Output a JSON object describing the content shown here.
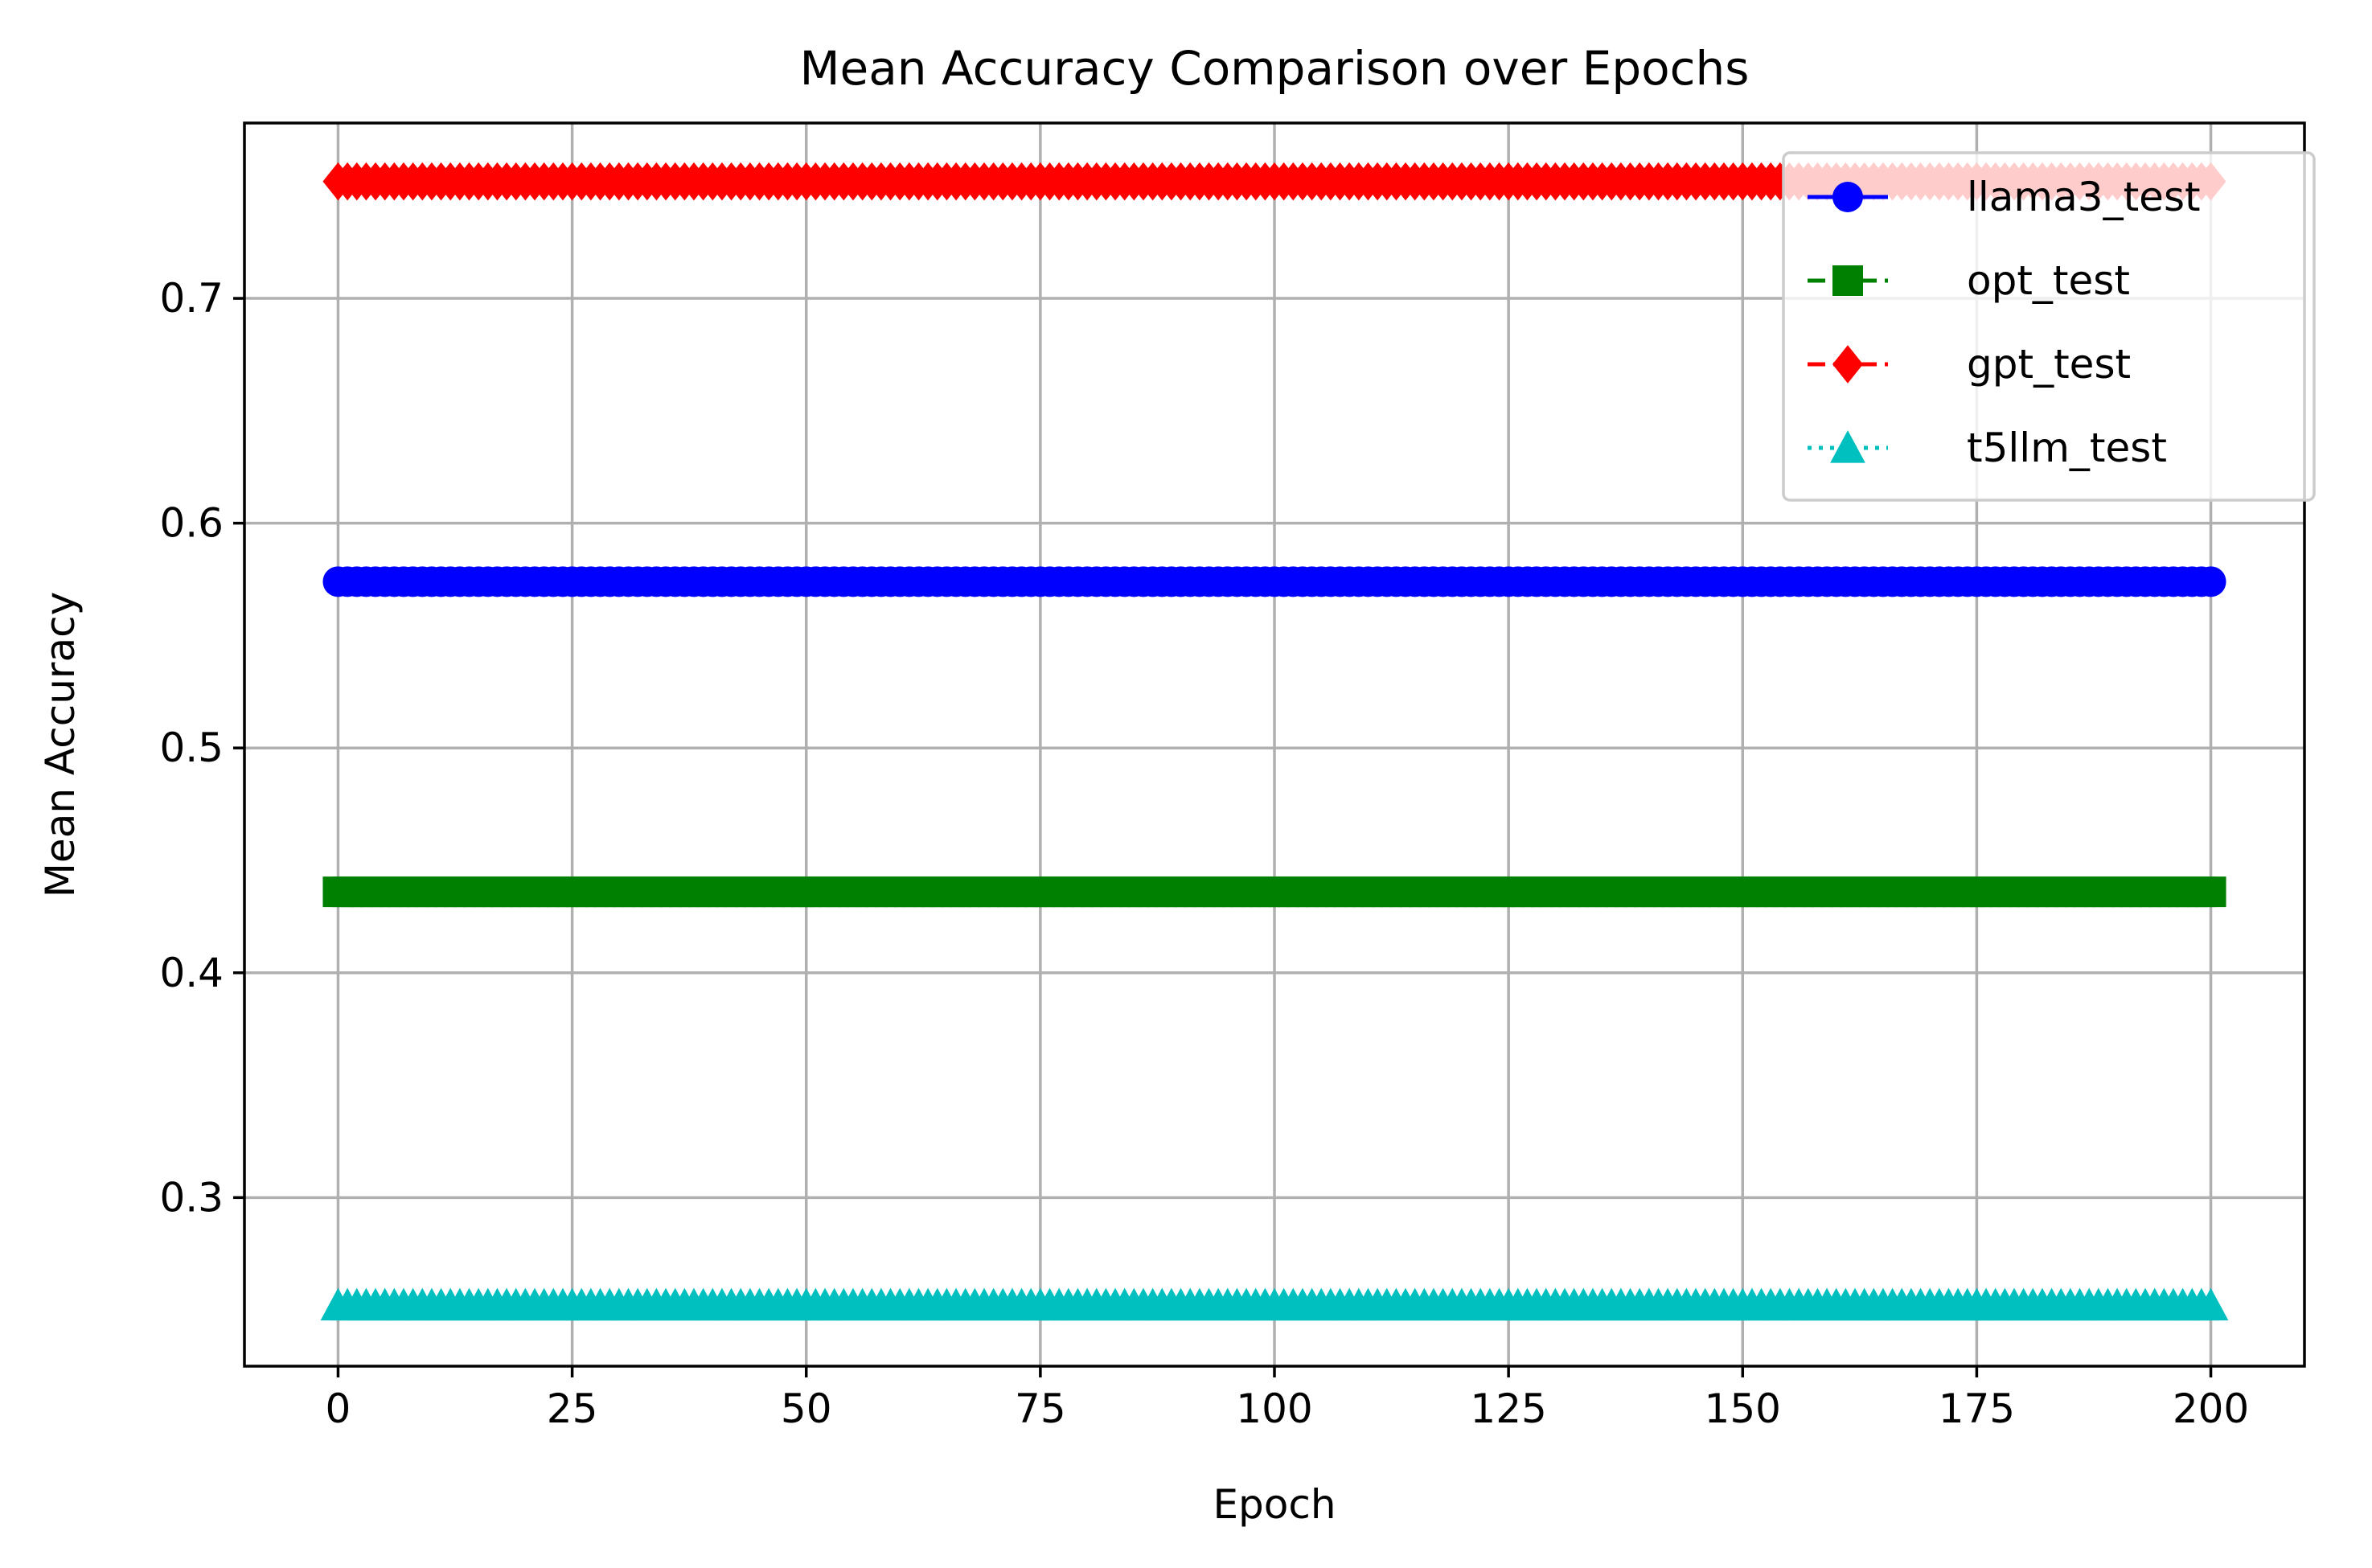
{
  "chart_data": {
    "type": "line",
    "title": "Mean Accuracy Comparison over Epochs",
    "xlabel": "Epoch",
    "ylabel": "Mean Accuracy",
    "xlim": [
      -10,
      210
    ],
    "ylim": [
      0.225,
      0.778
    ],
    "x_range": [
      0,
      200
    ],
    "x_ticks": [
      0,
      25,
      50,
      75,
      100,
      125,
      150,
      175,
      200
    ],
    "y_ticks": [
      0.3,
      0.4,
      0.5,
      0.6,
      0.7
    ],
    "x_tick_labels": [
      "0",
      "25",
      "50",
      "75",
      "100",
      "125",
      "150",
      "175",
      "200"
    ],
    "y_tick_labels": [
      "0.3",
      "0.4",
      "0.5",
      "0.6",
      "0.7"
    ],
    "grid": true,
    "legend_position": "top-right",
    "series": [
      {
        "name": "llama3_test",
        "value": 0.574,
        "color": "#0000ff",
        "marker": "circle",
        "linestyle": "solid"
      },
      {
        "name": "opt_test",
        "value": 0.436,
        "color": "#008000",
        "marker": "square",
        "linestyle": "dashed"
      },
      {
        "name": "gpt_test",
        "value": 0.752,
        "color": "#ff0000",
        "marker": "diamond",
        "linestyle": "dashed"
      },
      {
        "name": "t5llm_test",
        "value": 0.252,
        "color": "#00bfbf",
        "marker": "triangle",
        "linestyle": "dotted"
      }
    ]
  }
}
